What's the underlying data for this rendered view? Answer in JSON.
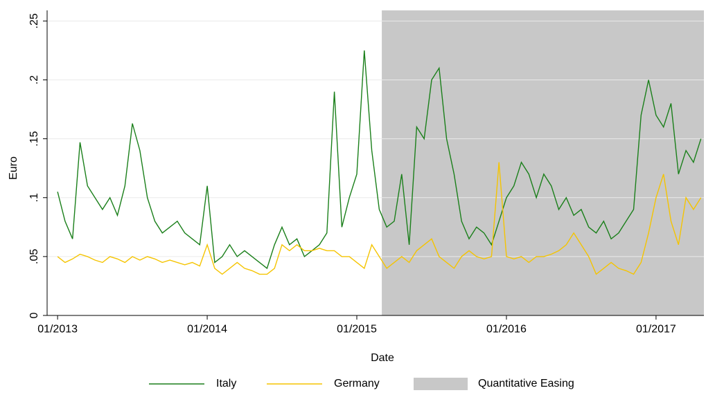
{
  "chart_data": {
    "type": "line",
    "x_label": "Date",
    "y_label": "Euro",
    "xlim": [
      2012.93,
      2017.32
    ],
    "xticks": [
      {
        "value": 2013,
        "label": "01/2013"
      },
      {
        "value": 2014,
        "label": "01/2014"
      },
      {
        "value": 2015,
        "label": "01/2015"
      },
      {
        "value": 2016,
        "label": "01/2016"
      },
      {
        "value": 2017,
        "label": "01/2017"
      }
    ],
    "ylim": [
      0,
      0.259
    ],
    "yticks": [
      0,
      {
        "value": 0.05,
        "label": ".05"
      },
      {
        "value": 0.1,
        "label": ".1"
      },
      {
        "value": 0.15,
        "label": ".15"
      },
      {
        "value": 0.2,
        "label": ".2"
      },
      {
        "value": 0.25,
        "label": ".25"
      }
    ],
    "grid": true,
    "legend": "bottom",
    "shade": {
      "name": "Quantitative Easing",
      "color": "#c8c8c8",
      "x": [
        2015.167,
        2017.32
      ]
    },
    "x": [
      2013.0,
      2013.05,
      2013.1,
      2013.15,
      2013.2,
      2013.25,
      2013.3,
      2013.35,
      2013.4,
      2013.45,
      2013.5,
      2013.55,
      2013.6,
      2013.65,
      2013.7,
      2013.75,
      2013.8,
      2013.85,
      2013.9,
      2013.95,
      2014.0,
      2014.05,
      2014.1,
      2014.15,
      2014.2,
      2014.25,
      2014.3,
      2014.35,
      2014.4,
      2014.45,
      2014.5,
      2014.55,
      2014.6,
      2014.65,
      2014.7,
      2014.75,
      2014.8,
      2014.85,
      2014.9,
      2014.95,
      2015.0,
      2015.05,
      2015.1,
      2015.15,
      2015.2,
      2015.25,
      2015.3,
      2015.35,
      2015.4,
      2015.45,
      2015.5,
      2015.55,
      2015.6,
      2015.65,
      2015.7,
      2015.75,
      2015.8,
      2015.85,
      2015.9,
      2015.95,
      2016.0,
      2016.05,
      2016.1,
      2016.15,
      2016.2,
      2016.25,
      2016.3,
      2016.35,
      2016.4,
      2016.45,
      2016.5,
      2016.55,
      2016.6,
      2016.65,
      2016.7,
      2016.75,
      2016.8,
      2016.85,
      2016.9,
      2016.95,
      2017.0,
      2017.05,
      2017.1,
      2017.15,
      2017.2,
      2017.25,
      2017.3
    ],
    "series": [
      {
        "name": "Italy",
        "color": "#1a7f1a",
        "values": [
          0.105,
          0.08,
          0.065,
          0.147,
          0.11,
          0.1,
          0.09,
          0.1,
          0.085,
          0.11,
          0.163,
          0.14,
          0.1,
          0.08,
          0.07,
          0.075,
          0.08,
          0.07,
          0.065,
          0.06,
          0.11,
          0.045,
          0.05,
          0.06,
          0.05,
          0.055,
          0.05,
          0.045,
          0.04,
          0.06,
          0.075,
          0.06,
          0.065,
          0.05,
          0.055,
          0.06,
          0.07,
          0.19,
          0.075,
          0.1,
          0.12,
          0.225,
          0.14,
          0.09,
          0.075,
          0.08,
          0.12,
          0.06,
          0.16,
          0.15,
          0.2,
          0.21,
          0.15,
          0.12,
          0.08,
          0.065,
          0.075,
          0.07,
          0.06,
          0.08,
          0.1,
          0.11,
          0.13,
          0.12,
          0.1,
          0.12,
          0.11,
          0.09,
          0.1,
          0.085,
          0.09,
          0.075,
          0.07,
          0.08,
          0.065,
          0.07,
          0.08,
          0.09,
          0.17,
          0.2,
          0.17,
          0.16,
          0.18,
          0.12,
          0.14,
          0.13,
          0.15
        ]
      },
      {
        "name": "Germany",
        "color": "#f5c400",
        "values": [
          0.05,
          0.045,
          0.048,
          0.052,
          0.05,
          0.047,
          0.045,
          0.05,
          0.048,
          0.045,
          0.05,
          0.047,
          0.05,
          0.048,
          0.045,
          0.047,
          0.045,
          0.043,
          0.045,
          0.042,
          0.06,
          0.04,
          0.035,
          0.04,
          0.045,
          0.04,
          0.038,
          0.035,
          0.035,
          0.04,
          0.06,
          0.055,
          0.06,
          0.055,
          0.055,
          0.057,
          0.055,
          0.055,
          0.05,
          0.05,
          0.045,
          0.04,
          0.06,
          0.05,
          0.04,
          0.045,
          0.05,
          0.045,
          0.055,
          0.06,
          0.065,
          0.05,
          0.045,
          0.04,
          0.05,
          0.055,
          0.05,
          0.048,
          0.05,
          0.13,
          0.05,
          0.048,
          0.05,
          0.045,
          0.05,
          0.05,
          0.052,
          0.055,
          0.06,
          0.07,
          0.06,
          0.05,
          0.035,
          0.04,
          0.045,
          0.04,
          0.038,
          0.035,
          0.045,
          0.07,
          0.1,
          0.12,
          0.08,
          0.06,
          0.1,
          0.09,
          0.1
        ]
      }
    ]
  }
}
